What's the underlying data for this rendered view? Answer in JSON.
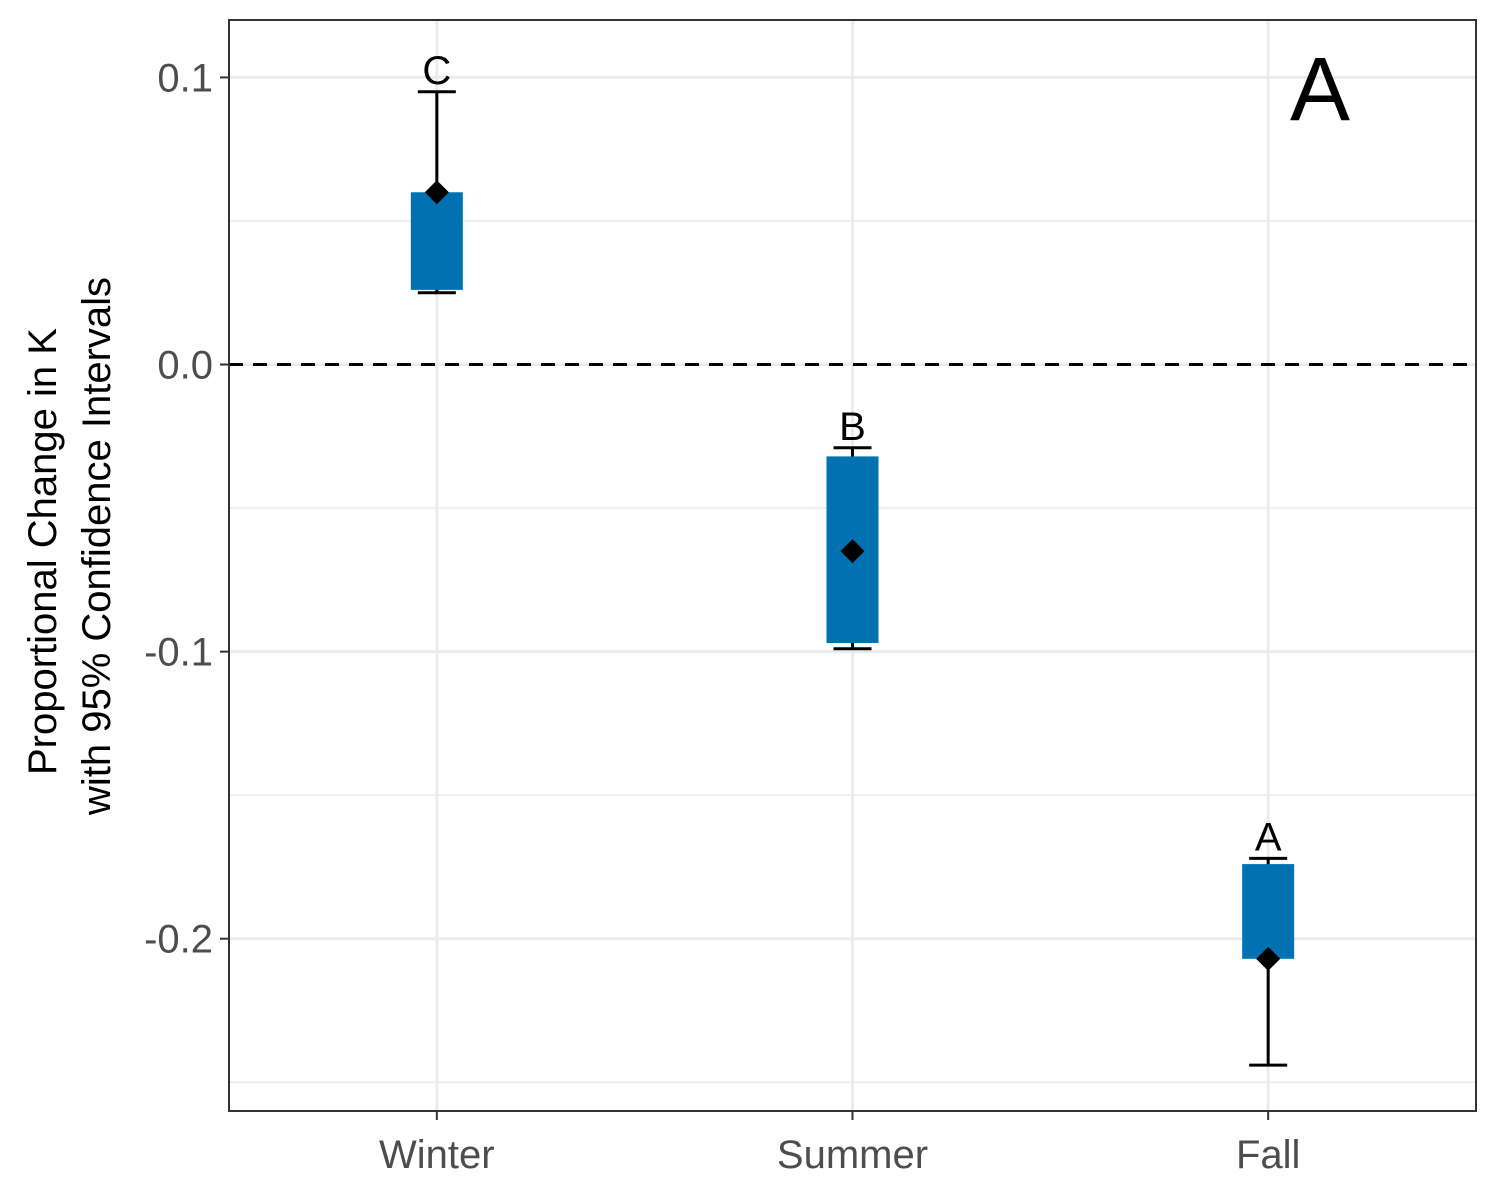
{
  "chart_data": {
    "type": "box",
    "panel_label": "A",
    "ylabel_lines": [
      "Proportional Change in K",
      "with 95% Confidence Intervals"
    ],
    "xlabel": "",
    "categories": [
      "Winter",
      "Summer",
      "Fall"
    ],
    "yticks": [
      0.1,
      0.0,
      -0.1,
      -0.2
    ],
    "ytick_labels": [
      "0.1",
      "0.0",
      "-0.1",
      "-0.2"
    ],
    "ylim": [
      -0.26,
      0.12
    ],
    "reference_line": 0.0,
    "grid": true,
    "box_color": "#0072B2",
    "items": [
      {
        "category": "Winter",
        "ci_lower": 0.025,
        "box_lower": 0.026,
        "box_upper": 0.06,
        "ci_upper": 0.095,
        "estimate": 0.06,
        "group": "C"
      },
      {
        "category": "Summer",
        "ci_lower": -0.099,
        "box_lower": -0.097,
        "box_upper": -0.032,
        "ci_upper": -0.029,
        "estimate": -0.065,
        "group": "B"
      },
      {
        "category": "Fall",
        "ci_lower": -0.244,
        "box_lower": -0.207,
        "box_upper": -0.174,
        "ci_upper": -0.172,
        "estimate": -0.207,
        "group": "A"
      }
    ]
  }
}
